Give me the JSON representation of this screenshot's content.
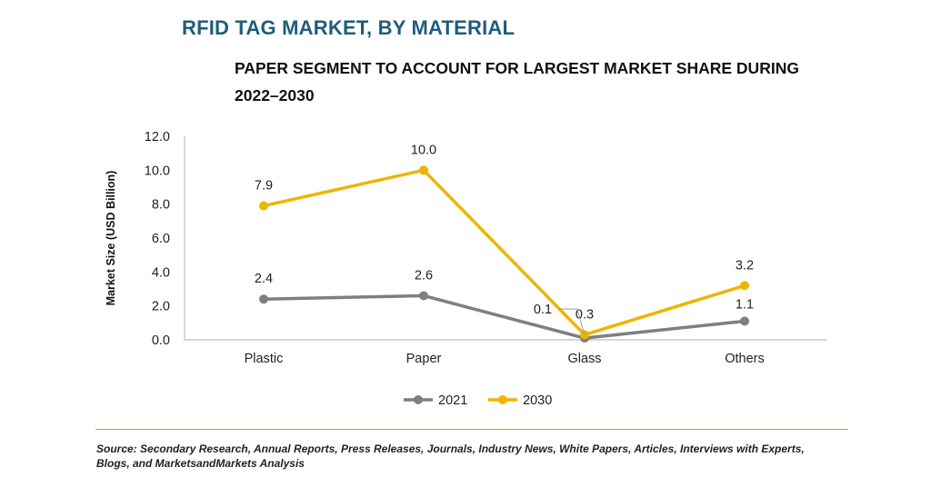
{
  "title": "RFID TAG MARKET, BY MATERIAL",
  "subtitle": "PAPER SEGMENT TO ACCOUNT FOR LARGEST MARKET SHARE DURING 2022–2030",
  "source": "Source: Secondary Research, Annual Reports, Press Releases, Journals, Industry News, White Papers, Articles, Interviews with Experts, Blogs, and MarketsandMarkets Analysis",
  "colors": {
    "series_2021": "#7f7f7f",
    "series_2030": "#f0b400",
    "rule": "#c9a227",
    "title": "#1f5d7a"
  },
  "chart_data": {
    "type": "line",
    "categories": [
      "Plastic",
      "Paper",
      "Glass",
      "Others"
    ],
    "ylabel": "Market Size (USD Billion)",
    "xlabel": "",
    "ylim": [
      0,
      12
    ],
    "yticks": [
      "0.0",
      "2.0",
      "4.0",
      "6.0",
      "8.0",
      "10.0",
      "12.0"
    ],
    "grid": false,
    "legend": "bottom",
    "series": [
      {
        "name": "2021",
        "values": [
          2.4,
          2.6,
          0.1,
          1.1
        ],
        "labels": [
          "2.4",
          "2.6",
          "0.1",
          "1.1"
        ]
      },
      {
        "name": "2030",
        "values": [
          7.9,
          10.0,
          0.3,
          3.2
        ],
        "labels": [
          "7.9",
          "10.0",
          "0.3",
          "3.2"
        ]
      }
    ]
  }
}
